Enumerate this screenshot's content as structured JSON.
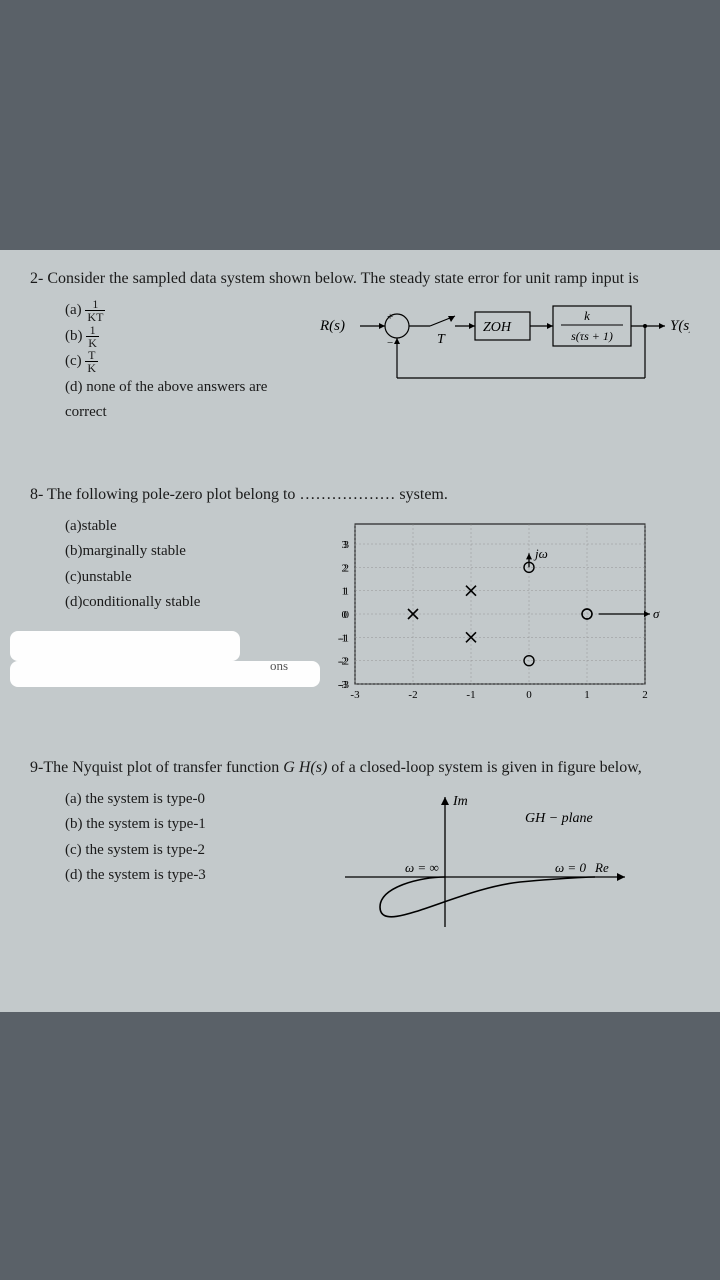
{
  "q2": {
    "prompt": "2- Consider the sampled data system shown below. The steady state error for unit ramp input is",
    "opt_a_prefix": "(a)",
    "opt_a_num": "1",
    "opt_a_den": "KT",
    "opt_b_prefix": "(b)",
    "opt_b_num": "1",
    "opt_b_den": "K",
    "opt_c_prefix": "(c)",
    "opt_c_num": "T",
    "opt_c_den": "K",
    "opt_d": "(d) none of the above answers are correct",
    "diagram": {
      "rs": "R(s)",
      "plus": "+",
      "minus": "−",
      "T": "T",
      "zoh": "ZOH",
      "tf_num": "k",
      "tf_den": "s(τs + 1)",
      "ys": "Y(s)"
    }
  },
  "q8": {
    "prompt": "8- The following pole-zero plot belong to ……………… system.",
    "opt_a": "(a)stable",
    "opt_b": "(b)marginally stable",
    "opt_c": "(c)unstable",
    "opt_d": "(d)conditionally stable",
    "chart": {
      "xlim": [
        -3,
        2
      ],
      "ylim": [
        -3,
        3
      ],
      "xticks": [
        -3,
        -2,
        -1,
        0,
        1,
        2
      ],
      "yticks": [
        -3,
        -2,
        -1,
        0,
        1,
        2,
        3
      ],
      "poles": [
        [
          -2,
          0
        ],
        [
          -1,
          1
        ],
        [
          -1,
          -1
        ]
      ],
      "zeros": [
        [
          0,
          2
        ],
        [
          0,
          -2
        ],
        [
          1,
          0
        ]
      ],
      "jw_label": "jω",
      "sigma_label": "σ",
      "axis_color": "#000000",
      "grid_color": "#888888",
      "marker_size": 5
    },
    "watermark": "ons"
  },
  "q9": {
    "prompt_part1": "9-The Nyquist plot of transfer function ",
    "prompt_gh": "G H(s)",
    "prompt_part2": " of a closed-loop system is given in figure below,",
    "opt_a": "(a) the system is type-0",
    "opt_b": "(b) the system is type-1",
    "opt_c": "(c)  the system is type-2",
    "opt_d": "(d) the system is type-3",
    "diagram": {
      "im": "Im",
      "gh_plane": "GH − plane",
      "w_inf": "ω = ∞",
      "w_zero": "ω = 0",
      "re": "Re"
    }
  }
}
